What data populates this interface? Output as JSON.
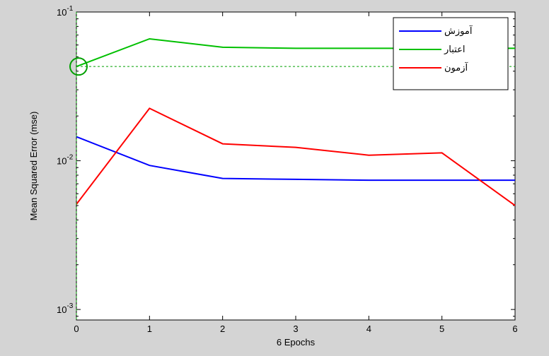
{
  "chart_data": {
    "type": "line",
    "title": "",
    "xlabel": "6 Epochs",
    "ylabel": "Mean Squared Error  (mse)",
    "x": [
      0,
      1,
      2,
      3,
      4,
      5,
      6
    ],
    "xlim": [
      0,
      6
    ],
    "ylim": [
      0.00085,
      0.1
    ],
    "yscale": "log",
    "x_ticks": [
      "0",
      "1",
      "2",
      "3",
      "4",
      "5",
      "6"
    ],
    "y_ticks": [
      {
        "value": 0.1,
        "base": "10",
        "exp": "-1"
      },
      {
        "value": 0.01,
        "base": "10",
        "exp": "-2"
      },
      {
        "value": 0.001,
        "base": "10",
        "exp": "-3"
      }
    ],
    "grid": false,
    "legend_position": "top-right",
    "series": [
      {
        "name": "آموزش",
        "color": "#0000ff",
        "values": [
          0.0145,
          0.0093,
          0.0076,
          0.0075,
          0.0074,
          0.0074,
          0.0074
        ]
      },
      {
        "name": "اعتبار",
        "color": "#00c000",
        "values": [
          0.043,
          0.066,
          0.058,
          0.057,
          0.057,
          0.057,
          0.057
        ]
      },
      {
        "name": "آزمون",
        "color": "#ff0000",
        "values": [
          0.0051,
          0.0225,
          0.013,
          0.0123,
          0.0109,
          0.0113,
          0.005
        ]
      }
    ],
    "best": {
      "epoch": 0,
      "value": 0.043,
      "color": "#00a000"
    }
  }
}
